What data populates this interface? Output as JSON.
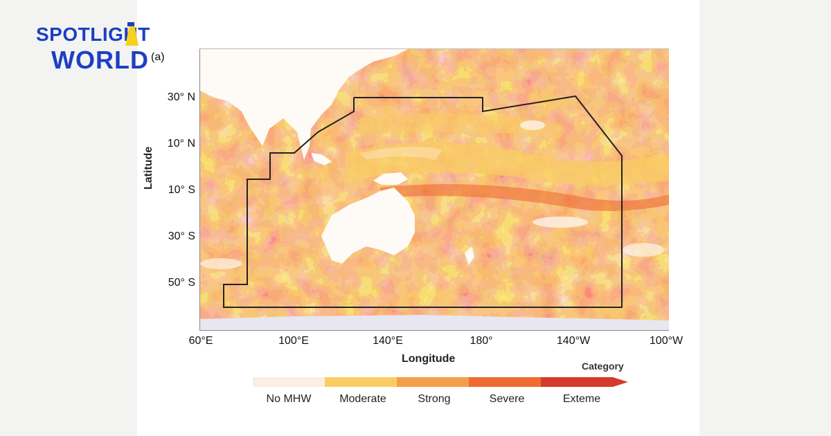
{
  "brand": {
    "line1": "SPOTLIGHT",
    "line2": "WORLD",
    "color": "#1d3fc4"
  },
  "panel_label": "(a)",
  "axes": {
    "y_title": "Latitude",
    "x_title": "Longitude",
    "lat_ticks": [
      "30° N",
      "10° N",
      "10° S",
      "30° S",
      "50° S"
    ],
    "lon_ticks": [
      "60°E",
      "100°E",
      "140°E",
      "180°",
      "140°W",
      "100°W"
    ]
  },
  "legend": {
    "title": "Category",
    "items": [
      {
        "label": "No MHW",
        "color": "#fbeee2"
      },
      {
        "label": "Moderate",
        "color": "#f9cd62"
      },
      {
        "label": "Strong",
        "color": "#f59e4a"
      },
      {
        "label": "Severe",
        "color": "#ee6c32"
      },
      {
        "label": "Exteme",
        "color": "#d43b2a"
      }
    ]
  }
}
